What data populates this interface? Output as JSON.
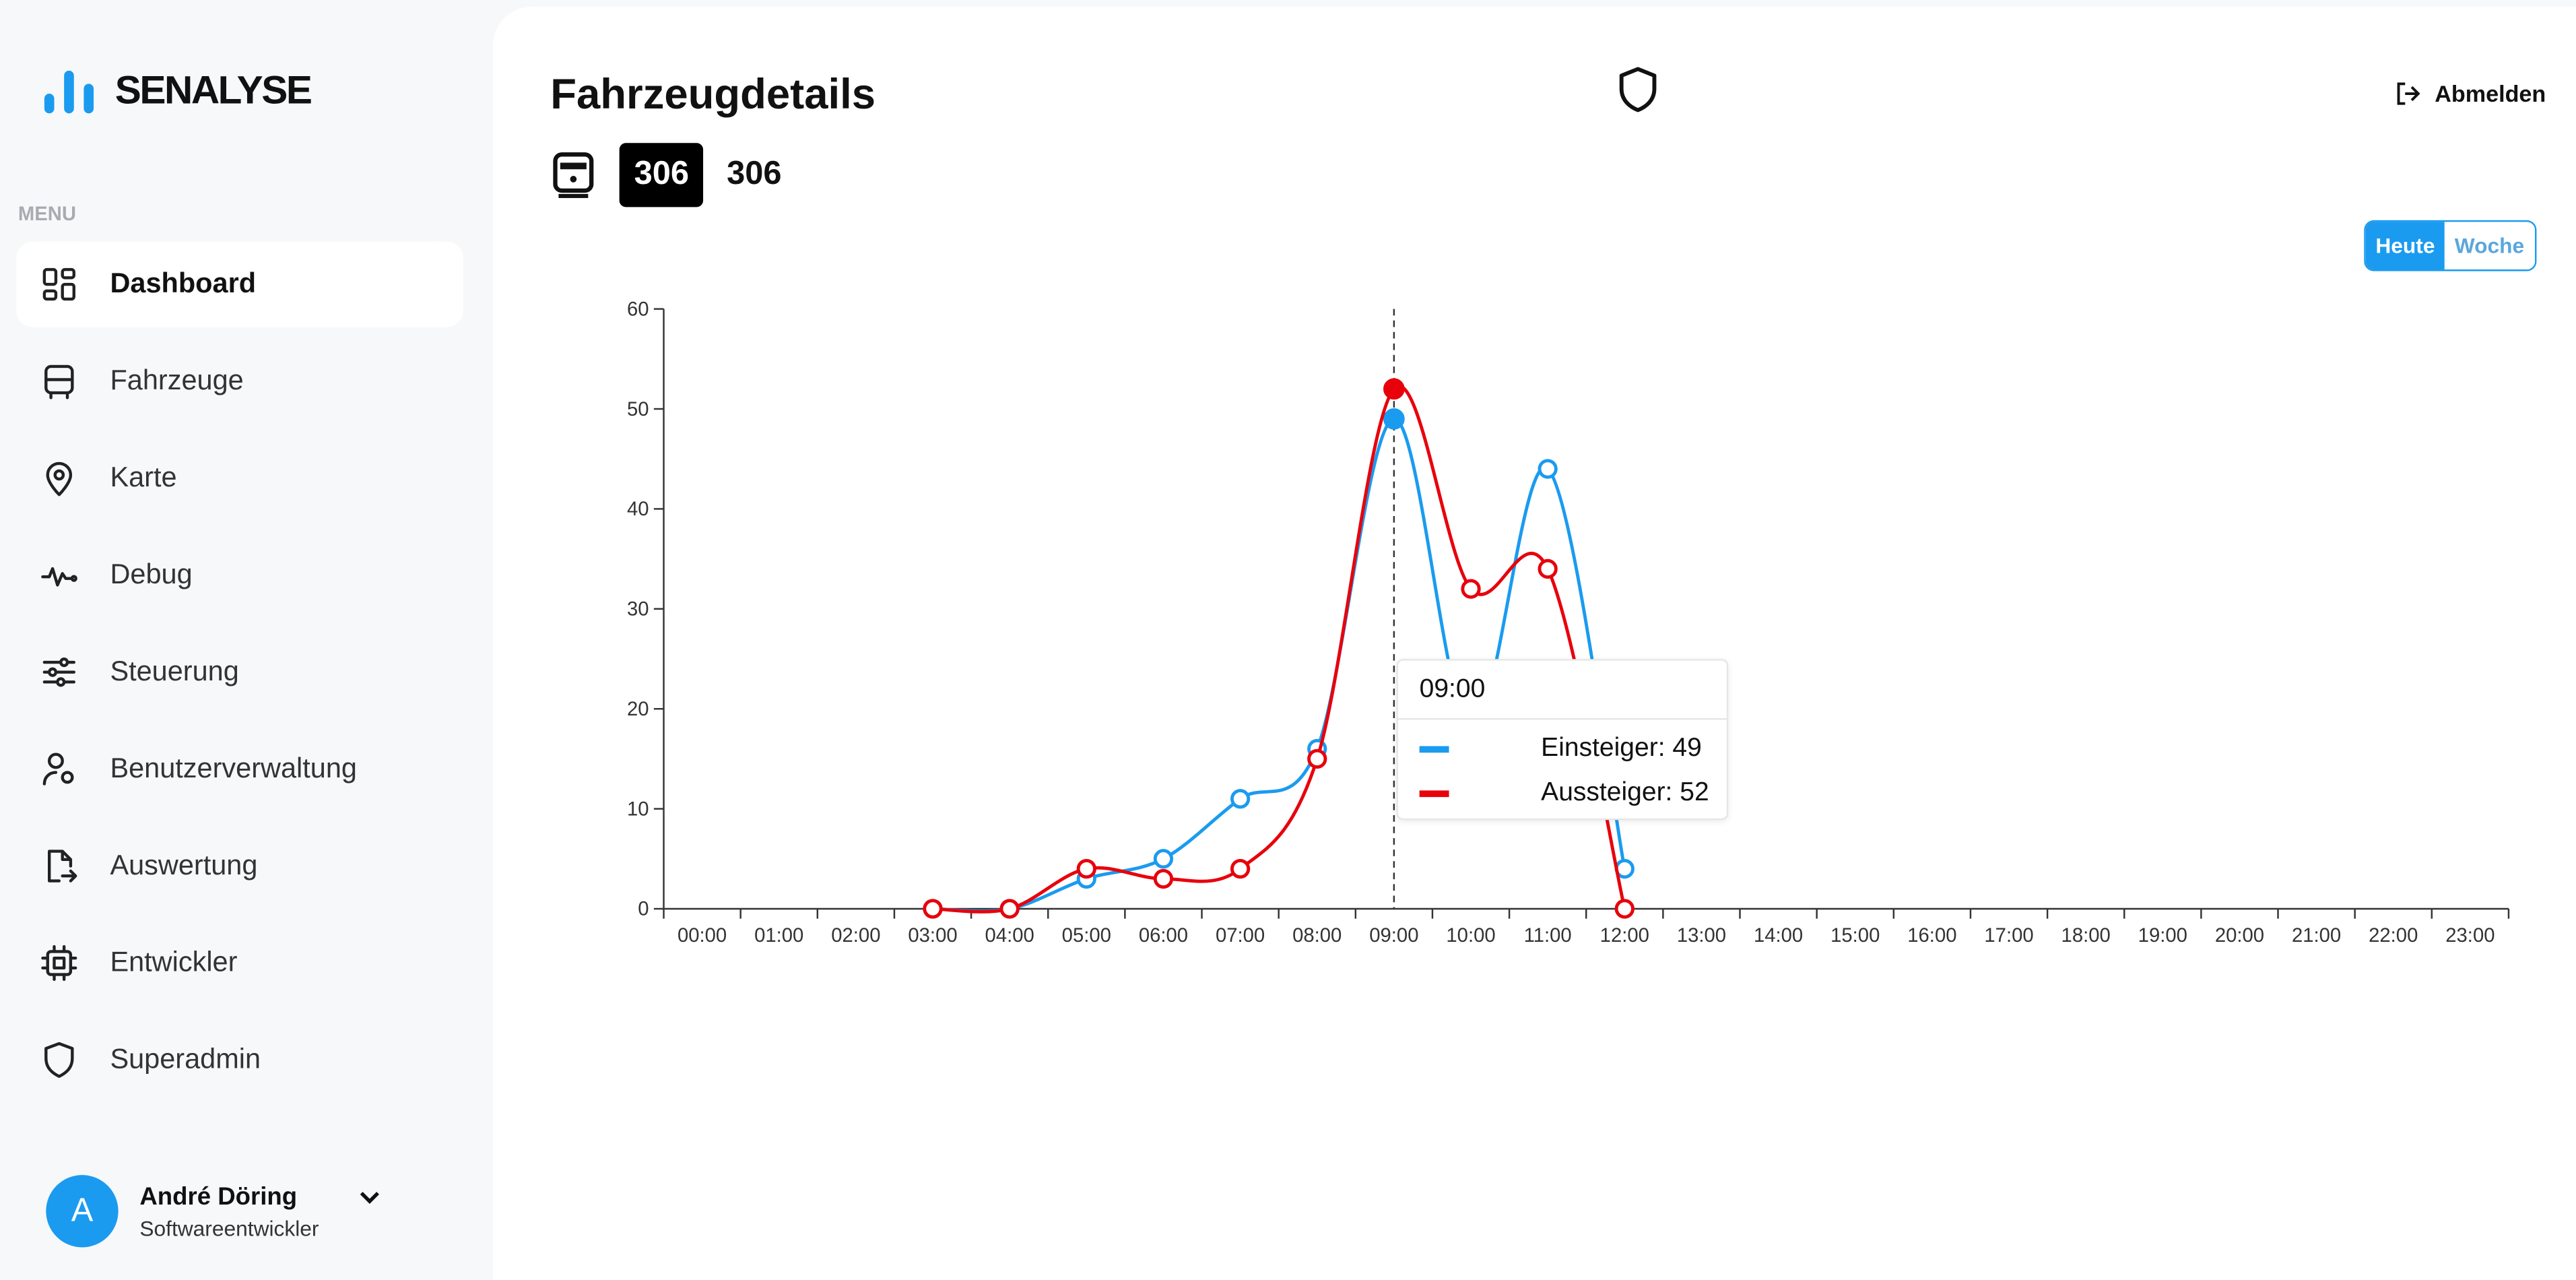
{
  "app": {
    "brand": "SENALYSE",
    "menu_label": "MENU"
  },
  "sidebar": {
    "items": [
      {
        "label": "Dashboard",
        "icon": "dashboard-icon",
        "active": true
      },
      {
        "label": "Fahrzeuge",
        "icon": "bus-icon"
      },
      {
        "label": "Karte",
        "icon": "map-pin-icon"
      },
      {
        "label": "Debug",
        "icon": "activity-icon"
      },
      {
        "label": "Steuerung",
        "icon": "sliders-icon"
      },
      {
        "label": "Benutzerverwaltung",
        "icon": "user-gear-icon"
      },
      {
        "label": "Auswertung",
        "icon": "file-export-icon"
      },
      {
        "label": "Entwickler",
        "icon": "cpu-icon"
      },
      {
        "label": "Superadmin",
        "icon": "shield-icon"
      }
    ]
  },
  "user": {
    "initial": "A",
    "name": "André Döring",
    "role": "Softwareentwickler"
  },
  "header": {
    "title": "Fahrzeugdetails",
    "logout": "Abmelden"
  },
  "vehicle": {
    "badge": "306",
    "name": "306"
  },
  "range_toggle": {
    "options": [
      "Heute",
      "Woche"
    ],
    "selected": "Heute"
  },
  "colors": {
    "accent": "#1a9bf0",
    "einsteiger": "#1a9bf0",
    "aussteiger": "#e8000b"
  },
  "tooltip": {
    "time": "09:00",
    "rows": [
      "Einsteiger: 49",
      "Aussteiger: 52"
    ]
  },
  "chart_data": {
    "type": "line",
    "categories": [
      "00:00",
      "01:00",
      "02:00",
      "03:00",
      "04:00",
      "05:00",
      "06:00",
      "07:00",
      "08:00",
      "09:00",
      "10:00",
      "11:00",
      "12:00",
      "13:00",
      "14:00",
      "15:00",
      "16:00",
      "17:00",
      "18:00",
      "19:00",
      "20:00",
      "21:00",
      "22:00",
      "23:00"
    ],
    "ylim": [
      0,
      60
    ],
    "yticks": [
      0,
      10,
      20,
      30,
      40,
      50,
      60
    ],
    "hover_category": "09:00",
    "series": [
      {
        "name": "Einsteiger",
        "color": "#1a9bf0",
        "values": [
          null,
          null,
          null,
          0,
          0,
          3,
          5,
          11,
          16,
          49,
          18,
          44,
          4,
          null,
          null,
          null,
          null,
          null,
          null,
          null,
          null,
          null,
          null,
          null
        ]
      },
      {
        "name": "Aussteiger",
        "color": "#e8000b",
        "values": [
          null,
          null,
          null,
          0,
          0,
          4,
          3,
          4,
          15,
          52,
          32,
          34,
          0,
          null,
          null,
          null,
          null,
          null,
          null,
          null,
          null,
          null,
          null,
          null
        ]
      }
    ]
  }
}
